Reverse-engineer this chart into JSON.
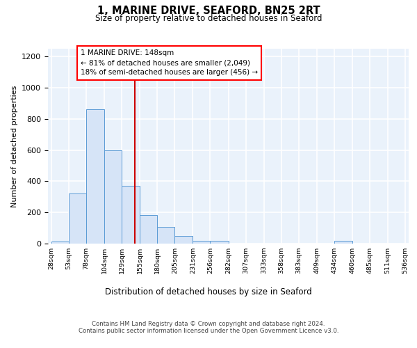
{
  "title": "1, MARINE DRIVE, SEAFORD, BN25 2RT",
  "subtitle": "Size of property relative to detached houses in Seaford",
  "xlabel": "Distribution of detached houses by size in Seaford",
  "ylabel": "Number of detached properties",
  "bar_edges": [
    28,
    53,
    78,
    104,
    129,
    155,
    180,
    205,
    231,
    256,
    282,
    307,
    333,
    358,
    383,
    409,
    434,
    460,
    485,
    511,
    536
  ],
  "bar_heights": [
    12,
    320,
    860,
    600,
    370,
    185,
    105,
    48,
    20,
    18,
    0,
    0,
    0,
    0,
    0,
    0,
    18,
    0,
    0,
    0
  ],
  "bar_fill": "#d6e4f7",
  "bar_edge_color": "#5b9bd5",
  "vline_x": 148,
  "vline_color": "#cc0000",
  "annotation_text": "1 MARINE DRIVE: 148sqm\n← 81% of detached houses are smaller (2,049)\n18% of semi-detached houses are larger (456) →",
  "ylim": [
    0,
    1250
  ],
  "yticks": [
    0,
    200,
    400,
    600,
    800,
    1000,
    1200
  ],
  "bg_color": "#eaf2fb",
  "grid_color": "#ffffff",
  "footer_text": "Contains HM Land Registry data © Crown copyright and database right 2024.\nContains public sector information licensed under the Open Government Licence v3.0.",
  "tick_labels": [
    "28sqm",
    "53sqm",
    "78sqm",
    "104sqm",
    "129sqm",
    "155sqm",
    "180sqm",
    "205sqm",
    "231sqm",
    "256sqm",
    "282sqm",
    "307sqm",
    "333sqm",
    "358sqm",
    "383sqm",
    "409sqm",
    "434sqm",
    "460sqm",
    "485sqm",
    "511sqm",
    "536sqm"
  ]
}
